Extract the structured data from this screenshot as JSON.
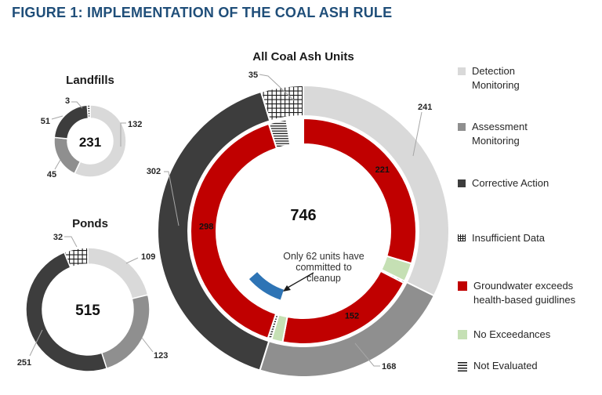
{
  "title": "FIGURE 1: IMPLEMENTATION OF THE COAL ASH RULE",
  "colors": {
    "title_blue": "#1f4e79",
    "detection": "#d9d9d9",
    "assessment": "#8f8f8f",
    "corrective": "#3d3d3d",
    "exceeds": "#c00000",
    "no_exceedances": "#c5e0b4",
    "cleanup": "#2e74b5",
    "pattern_ink": "#1a1a1a",
    "leader_line": "#a6a6a6",
    "label_text": "#262626"
  },
  "legend": {
    "items": [
      {
        "label": "Detection Monitoring",
        "style": "detection"
      },
      {
        "label": "Assessment Monitoring",
        "style": "assessment"
      },
      {
        "label": "Corrective Action",
        "style": "corrective"
      },
      {
        "label": "Insufficient Data",
        "style": "insufficient"
      },
      {
        "label": "Groundwater exceeds health-based guidlines",
        "style": "exceeds"
      },
      {
        "label": "No Exceedances",
        "style": "no_exceedances"
      },
      {
        "label": "Not Evaluated",
        "style": "not_evaluated"
      }
    ]
  },
  "chart_data": [
    {
      "id": "landfills",
      "type": "donut",
      "title": "Landfills",
      "total": 231,
      "center_label": "231",
      "segments": [
        {
          "value": 132,
          "label": "132",
          "category": "Detection Monitoring",
          "style": "detection"
        },
        {
          "value": 45,
          "label": "45",
          "category": "Assessment Monitoring",
          "style": "assessment"
        },
        {
          "value": 51,
          "label": "51",
          "category": "Corrective Action",
          "style": "corrective"
        },
        {
          "value": 3,
          "label": "3",
          "category": "Not Evaluated",
          "style": "not_evaluated"
        }
      ]
    },
    {
      "id": "ponds",
      "type": "donut",
      "title": "Ponds",
      "total": 515,
      "center_label": "515",
      "segments": [
        {
          "value": 109,
          "label": "109",
          "category": "Detection Monitoring",
          "style": "detection"
        },
        {
          "value": 123,
          "label": "123",
          "category": "Assessment Monitoring",
          "style": "assessment"
        },
        {
          "value": 251,
          "label": "251",
          "category": "Corrective Action",
          "style": "corrective"
        },
        {
          "value": 32,
          "label": "32",
          "category": "Insufficient Data",
          "style": "insufficient"
        }
      ]
    },
    {
      "id": "all",
      "type": "double_donut",
      "title": "All Coal Ash Units",
      "total": 746,
      "center_label": "746",
      "outer_segments": [
        {
          "value": 241,
          "label": "241",
          "category": "Detection Monitoring",
          "style": "detection"
        },
        {
          "value": 168,
          "label": "168",
          "category": "Assessment Monitoring",
          "style": "assessment"
        },
        {
          "value": 302,
          "label": "302",
          "category": "Corrective Action",
          "style": "corrective"
        },
        {
          "value": 35,
          "label": "35",
          "category": "Insufficient Data",
          "style": "insufficient"
        }
      ],
      "inner_segments": [
        {
          "value": 221,
          "label": "221",
          "category": "Groundwater exceeds health-based guidlines",
          "style": "exceeds"
        },
        {
          "value": 20,
          "category": "No Exceedances",
          "style": "no_exceedances"
        },
        {
          "value": 2,
          "category": "Not Evaluated",
          "style": "not_evaluated"
        },
        {
          "value": 152,
          "label": "152",
          "category": "Groundwater exceeds health-based guidlines",
          "style": "exceeds"
        },
        {
          "value": 12,
          "category": "No Exceedances",
          "style": "no_exceedances"
        },
        {
          "value": 4,
          "category": "Not Evaluated",
          "style": "not_evaluated"
        },
        {
          "value": 298,
          "label": "298",
          "category": "Groundwater exceeds health-based guidlines",
          "style": "exceeds"
        },
        {
          "value": 19,
          "category": "Not Evaluated",
          "style": "not_evaluated"
        },
        {
          "value": 18,
          "category": "No Data Shown",
          "style": "none"
        }
      ],
      "cleanup_arc": {
        "value": 62,
        "style": "cleanup"
      },
      "annotation_lines": [
        "Only 62 units have",
        "committed to",
        "cleanup"
      ]
    }
  ]
}
